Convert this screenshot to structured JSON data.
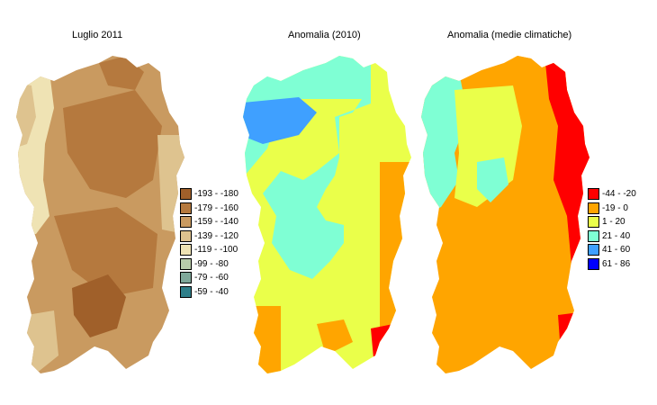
{
  "titles": {
    "map1": "Luglio 2011",
    "map2": "Anomalia (2010)",
    "map3": "Anomalia (medie climatiche)"
  },
  "legend_left": [
    {
      "label": "-193 - -180",
      "color": "#a0602a"
    },
    {
      "label": "-179 - -160",
      "color": "#b5793e"
    },
    {
      "label": "-159 - -140",
      "color": "#c99a60"
    },
    {
      "label": "-139 - -120",
      "color": "#dec38f"
    },
    {
      "label": "-119 - -100",
      "color": "#efe3b4"
    },
    {
      "label": "-99 - -80",
      "color": "#b9ccaa"
    },
    {
      "label": "-79 - -60",
      "color": "#7fa89a"
    },
    {
      "label": "-59 - -40",
      "color": "#2f7f8a"
    }
  ],
  "legend_right": [
    {
      "label": "-44 - -20",
      "color": "#ff0000"
    },
    {
      "label": "-19 - 0",
      "color": "#ffa500"
    },
    {
      "label": "1 - 20",
      "color": "#eaff4a"
    },
    {
      "label": "21 - 40",
      "color": "#7fffd4"
    },
    {
      "label": "41 - 60",
      "color": "#3fa0ff"
    },
    {
      "label": "61 - 86",
      "color": "#0000ff"
    }
  ]
}
